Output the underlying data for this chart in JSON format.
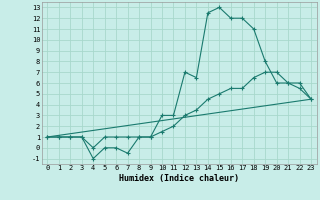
{
  "xlabel": "Humidex (Indice chaleur)",
  "xlim": [
    -0.5,
    23.5
  ],
  "ylim": [
    -1.5,
    13.5
  ],
  "xticks": [
    0,
    1,
    2,
    3,
    4,
    5,
    6,
    7,
    8,
    9,
    10,
    11,
    12,
    13,
    14,
    15,
    16,
    17,
    18,
    19,
    20,
    21,
    22,
    23
  ],
  "yticks": [
    -1,
    0,
    1,
    2,
    3,
    4,
    5,
    6,
    7,
    8,
    9,
    10,
    11,
    12,
    13
  ],
  "background_color": "#c8ede8",
  "grid_color": "#a8d8cc",
  "line_color": "#1a7a6e",
  "curve1_x": [
    0,
    1,
    2,
    3,
    4,
    5,
    6,
    7,
    8,
    9,
    10,
    11,
    12,
    13,
    14,
    15,
    16,
    17,
    18,
    19,
    20,
    21,
    22,
    23
  ],
  "curve1_y": [
    1,
    1,
    1,
    1,
    -1,
    0,
    0,
    -0.5,
    1,
    1,
    3,
    3,
    7,
    6.5,
    12.5,
    13,
    12,
    12,
    11,
    8,
    6,
    6,
    5.5,
    4.5
  ],
  "curve2_x": [
    0,
    1,
    2,
    3,
    4,
    5,
    6,
    7,
    8,
    9,
    10,
    11,
    12,
    13,
    14,
    15,
    16,
    17,
    18,
    19,
    20,
    21,
    22,
    23
  ],
  "curve2_y": [
    1,
    1,
    1,
    1,
    0,
    1,
    1,
    1,
    1,
    1,
    1.5,
    2,
    3,
    3.5,
    4.5,
    5,
    5.5,
    5.5,
    6.5,
    7,
    7,
    6,
    6,
    4.5
  ],
  "curve3_x": [
    0,
    23
  ],
  "curve3_y": [
    1,
    4.5
  ]
}
